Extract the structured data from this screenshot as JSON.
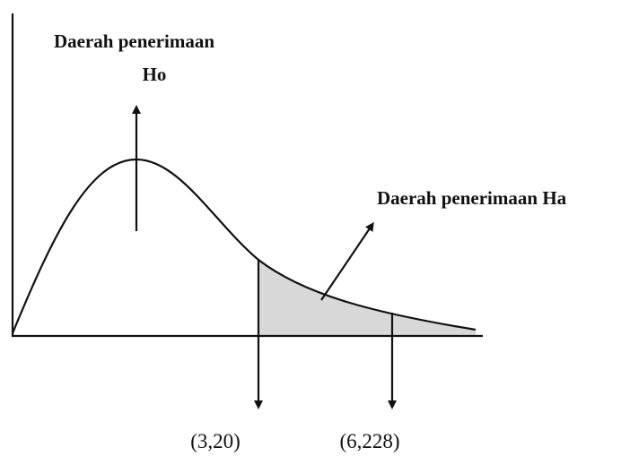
{
  "labels": {
    "h0_region_line1": "Daerah penerimaan",
    "h0_region_line2": "Ho",
    "ha_region": "Daerah penerimaan Ha",
    "left_point": "(3,20)",
    "right_point": "(6,228)"
  }
}
